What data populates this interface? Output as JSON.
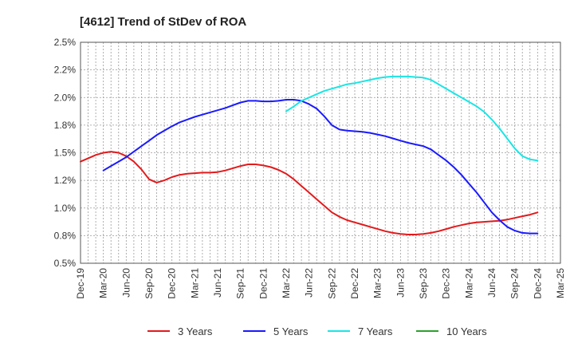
{
  "chart_data": {
    "type": "line",
    "title": "[4612]  Trend of StDev of ROA",
    "xlabel": "",
    "ylabel": "",
    "grid": true,
    "legend_position": "bottom",
    "ylim": [
      0.5,
      2.5
    ],
    "y_ticks": [
      0.5,
      0.75,
      1.0,
      1.25,
      1.5,
      1.75,
      2.0,
      2.25,
      2.5
    ],
    "y_tick_labels": [
      "0.5%",
      "0.8%",
      "1.0%",
      "1.2%",
      "1.5%",
      "1.8%",
      "2.0%",
      "2.2%",
      "2.5%"
    ],
    "x_tick_labels": [
      "Dec-19",
      "Mar-20",
      "Jun-20",
      "Sep-20",
      "Dec-20",
      "Mar-21",
      "Jun-21",
      "Sep-21",
      "Dec-21",
      "Mar-22",
      "Jun-22",
      "Sep-22",
      "Dec-22",
      "Mar-23",
      "Jun-23",
      "Sep-23",
      "Dec-23",
      "Mar-24",
      "Jun-24",
      "Sep-24",
      "Dec-24",
      "Mar-25"
    ],
    "series": [
      {
        "name": "3 Years",
        "color": "#e31a1c",
        "x": [
          "Dec-19",
          "Jan-20",
          "Feb-20",
          "Mar-20",
          "Apr-20",
          "May-20",
          "Jun-20",
          "Jul-20",
          "Aug-20",
          "Sep-20",
          "Oct-20",
          "Nov-20",
          "Dec-20",
          "Jan-21",
          "Feb-21",
          "Mar-21",
          "Apr-21",
          "May-21",
          "Jun-21",
          "Jul-21",
          "Aug-21",
          "Sep-21",
          "Oct-21",
          "Nov-21",
          "Dec-21",
          "Jan-22",
          "Feb-22",
          "Mar-22",
          "Apr-22",
          "May-22",
          "Jun-22",
          "Jul-22",
          "Aug-22",
          "Sep-22",
          "Oct-22",
          "Nov-22",
          "Dec-22",
          "Jan-23",
          "Feb-23",
          "Mar-23",
          "Apr-23",
          "May-23",
          "Jun-23",
          "Jul-23",
          "Aug-23",
          "Sep-23",
          "Oct-23",
          "Nov-23",
          "Dec-23",
          "Jan-24",
          "Feb-24",
          "Mar-24",
          "Apr-24",
          "May-24",
          "Jun-24",
          "Jul-24",
          "Aug-24",
          "Sep-24",
          "Oct-24",
          "Nov-24",
          "Dec-24"
        ],
        "values": [
          1.42,
          1.45,
          1.48,
          1.5,
          1.51,
          1.5,
          1.47,
          1.42,
          1.35,
          1.26,
          1.23,
          1.25,
          1.28,
          1.3,
          1.31,
          1.315,
          1.32,
          1.32,
          1.325,
          1.34,
          1.36,
          1.38,
          1.395,
          1.395,
          1.385,
          1.37,
          1.345,
          1.31,
          1.26,
          1.2,
          1.14,
          1.08,
          1.02,
          0.96,
          0.92,
          0.89,
          0.87,
          0.85,
          0.83,
          0.81,
          0.79,
          0.775,
          0.765,
          0.76,
          0.76,
          0.765,
          0.775,
          0.79,
          0.81,
          0.83,
          0.845,
          0.86,
          0.87,
          0.875,
          0.88,
          0.885,
          0.895,
          0.91,
          0.925,
          0.94,
          0.96
        ]
      },
      {
        "name": "5 Years",
        "color": "#1a1aff",
        "x": [
          "Mar-20",
          "Apr-20",
          "May-20",
          "Jun-20",
          "Jul-20",
          "Aug-20",
          "Sep-20",
          "Oct-20",
          "Nov-20",
          "Dec-20",
          "Jan-21",
          "Feb-21",
          "Mar-21",
          "Apr-21",
          "May-21",
          "Jun-21",
          "Jul-21",
          "Aug-21",
          "Sep-21",
          "Oct-21",
          "Nov-21",
          "Dec-21",
          "Jan-22",
          "Feb-22",
          "Mar-22",
          "Apr-22",
          "May-22",
          "Jun-22",
          "Jul-22",
          "Aug-22",
          "Sep-22",
          "Oct-22",
          "Nov-22",
          "Dec-22",
          "Jan-23",
          "Feb-23",
          "Mar-23",
          "Apr-23",
          "May-23",
          "Jun-23",
          "Jul-23",
          "Aug-23",
          "Sep-23",
          "Oct-23",
          "Nov-23",
          "Dec-23",
          "Jan-24",
          "Feb-24",
          "Mar-24",
          "Apr-24",
          "May-24",
          "Jun-24",
          "Jul-24",
          "Aug-24",
          "Sep-24",
          "Oct-24",
          "Nov-24",
          "Dec-24"
        ],
        "values": [
          1.34,
          1.38,
          1.42,
          1.46,
          1.51,
          1.56,
          1.61,
          1.66,
          1.7,
          1.74,
          1.775,
          1.8,
          1.825,
          1.845,
          1.865,
          1.885,
          1.905,
          1.93,
          1.955,
          1.97,
          1.97,
          1.965,
          1.965,
          1.97,
          1.98,
          1.98,
          1.97,
          1.94,
          1.9,
          1.83,
          1.75,
          1.71,
          1.7,
          1.695,
          1.69,
          1.68,
          1.665,
          1.65,
          1.63,
          1.61,
          1.59,
          1.575,
          1.56,
          1.53,
          1.48,
          1.43,
          1.37,
          1.3,
          1.22,
          1.14,
          1.05,
          0.96,
          0.89,
          0.83,
          0.795,
          0.775,
          0.77,
          0.77
        ]
      },
      {
        "name": "7 Years",
        "color": "#1ae5e5",
        "x": [
          "Mar-22",
          "Apr-22",
          "May-22",
          "Jun-22",
          "Jul-22",
          "Aug-22",
          "Sep-22",
          "Oct-22",
          "Nov-22",
          "Dec-22",
          "Jan-23",
          "Feb-23",
          "Mar-23",
          "Apr-23",
          "May-23",
          "Jun-23",
          "Jul-23",
          "Aug-23",
          "Sep-23",
          "Oct-23",
          "Nov-23",
          "Dec-23",
          "Jan-24",
          "Feb-24",
          "Mar-24",
          "Apr-24",
          "May-24",
          "Jun-24",
          "Jul-24",
          "Aug-24",
          "Sep-24",
          "Oct-24",
          "Nov-24",
          "Dec-24"
        ],
        "values": [
          1.875,
          1.92,
          1.97,
          2.0,
          2.03,
          2.06,
          2.08,
          2.1,
          2.12,
          2.13,
          2.145,
          2.16,
          2.175,
          2.185,
          2.19,
          2.19,
          2.19,
          2.185,
          2.18,
          2.16,
          2.12,
          2.08,
          2.04,
          2.0,
          1.96,
          1.92,
          1.87,
          1.8,
          1.72,
          1.63,
          1.54,
          1.47,
          1.44,
          1.43
        ]
      },
      {
        "name": "10 Years",
        "color": "#2ca02c",
        "x": [],
        "values": []
      }
    ]
  }
}
